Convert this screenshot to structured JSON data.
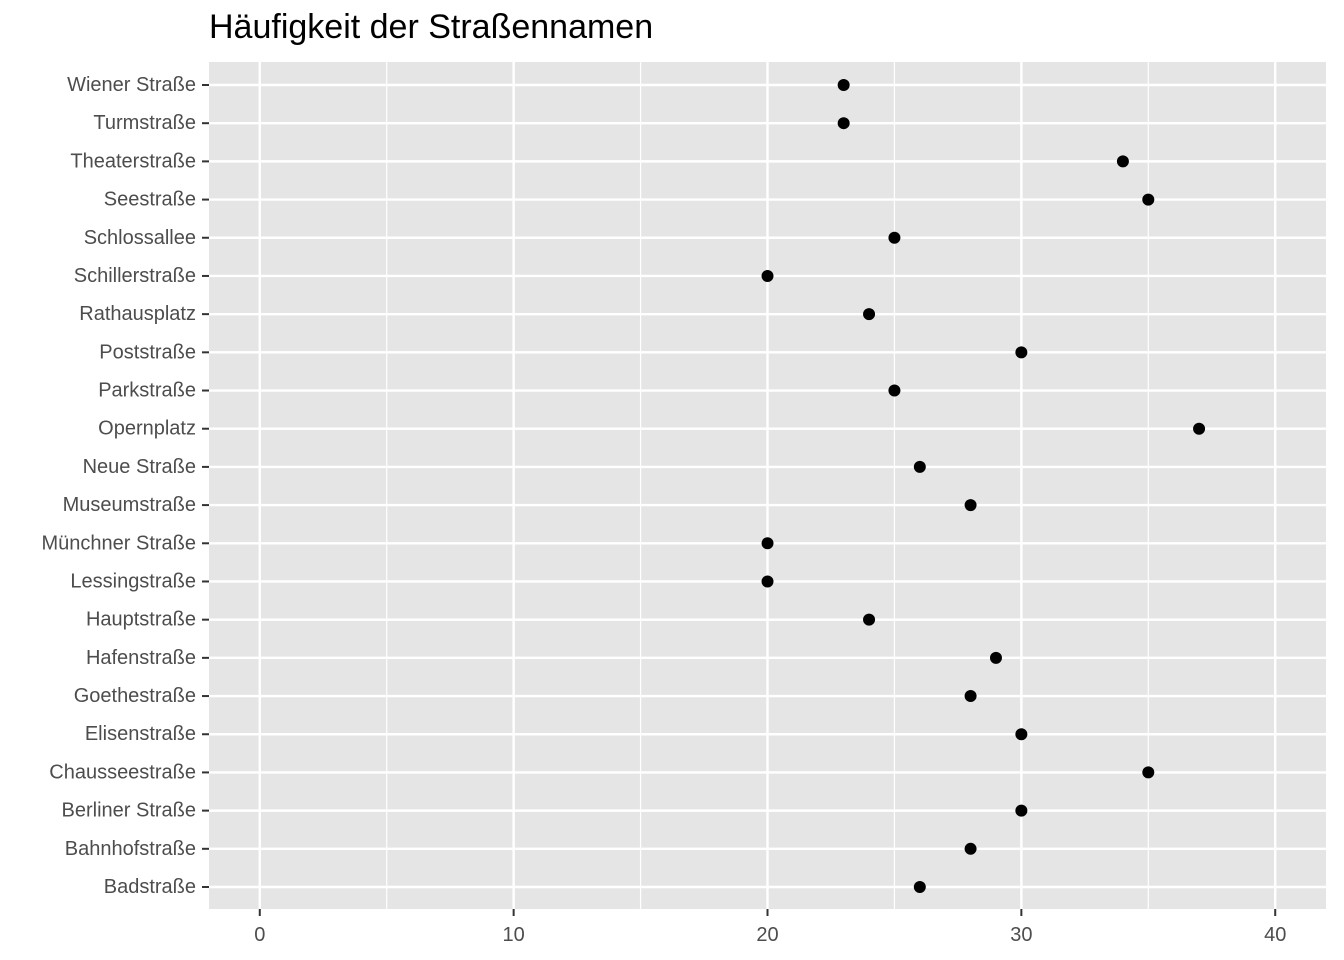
{
  "chart_data": {
    "type": "scatter",
    "title": "Häufigkeit der Straßennamen",
    "xlabel": "",
    "ylabel": "",
    "xlim": [
      -2,
      42
    ],
    "x_ticks": [
      0,
      10,
      20,
      30,
      40
    ],
    "x_tick_labels": [
      "0",
      "10",
      "20",
      "30",
      "40"
    ],
    "grid": true,
    "background": "#e5e5e5",
    "gridline_color": "#ffffff",
    "point_color": "#000000",
    "categories": [
      "Badstraße",
      "Bahnhofstraße",
      "Berliner Straße",
      "Chausseestraße",
      "Elisenstraße",
      "Goethestraße",
      "Hafenstraße",
      "Hauptstraße",
      "Lessingstraße",
      "Münchner Straße",
      "Museumstraße",
      "Neue Straße",
      "Opernplatz",
      "Parkstraße",
      "Poststraße",
      "Rathausplatz",
      "Schillerstraße",
      "Schlossallee",
      "Seestraße",
      "Theaterstraße",
      "Turmstraße",
      "Wiener Straße"
    ],
    "values": [
      26,
      28,
      30,
      35,
      30,
      28,
      29,
      24,
      20,
      20,
      28,
      26,
      37,
      25,
      30,
      24,
      20,
      25,
      35,
      34,
      23,
      23
    ]
  }
}
